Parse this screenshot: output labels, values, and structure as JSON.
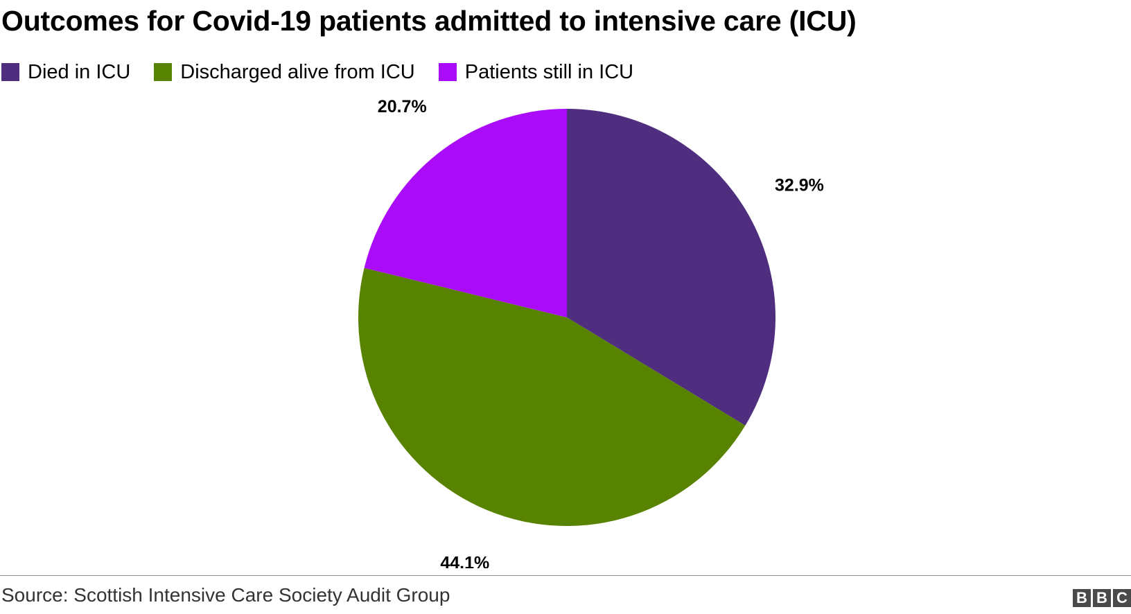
{
  "chart_data": {
    "type": "pie",
    "title": "Outcomes for Covid-19 patients admitted to intensive care (ICU)",
    "categories": [
      "Died in ICU",
      "Discharged alive from ICU",
      "Patients still in ICU"
    ],
    "values": [
      32.9,
      44.1,
      20.7
    ],
    "data_labels": [
      "32.9%",
      "44.1%",
      "20.7%"
    ],
    "colors": [
      "#4f2d7f",
      "#588300",
      "#aa0cfa"
    ],
    "legend": {
      "placement": "top-left",
      "items": [
        {
          "label": "Died in ICU",
          "color": "#4f2d7f"
        },
        {
          "label": "Discharged alive from ICU",
          "color": "#588300"
        },
        {
          "label": "Patients still in ICU",
          "color": "#aa0cfa"
        }
      ]
    },
    "start": "12 o'clock",
    "direction": "clockwise"
  },
  "footer": {
    "source": "Source: Scottish Intensive Care Society Audit Group",
    "logo": [
      "B",
      "B",
      "C"
    ]
  }
}
